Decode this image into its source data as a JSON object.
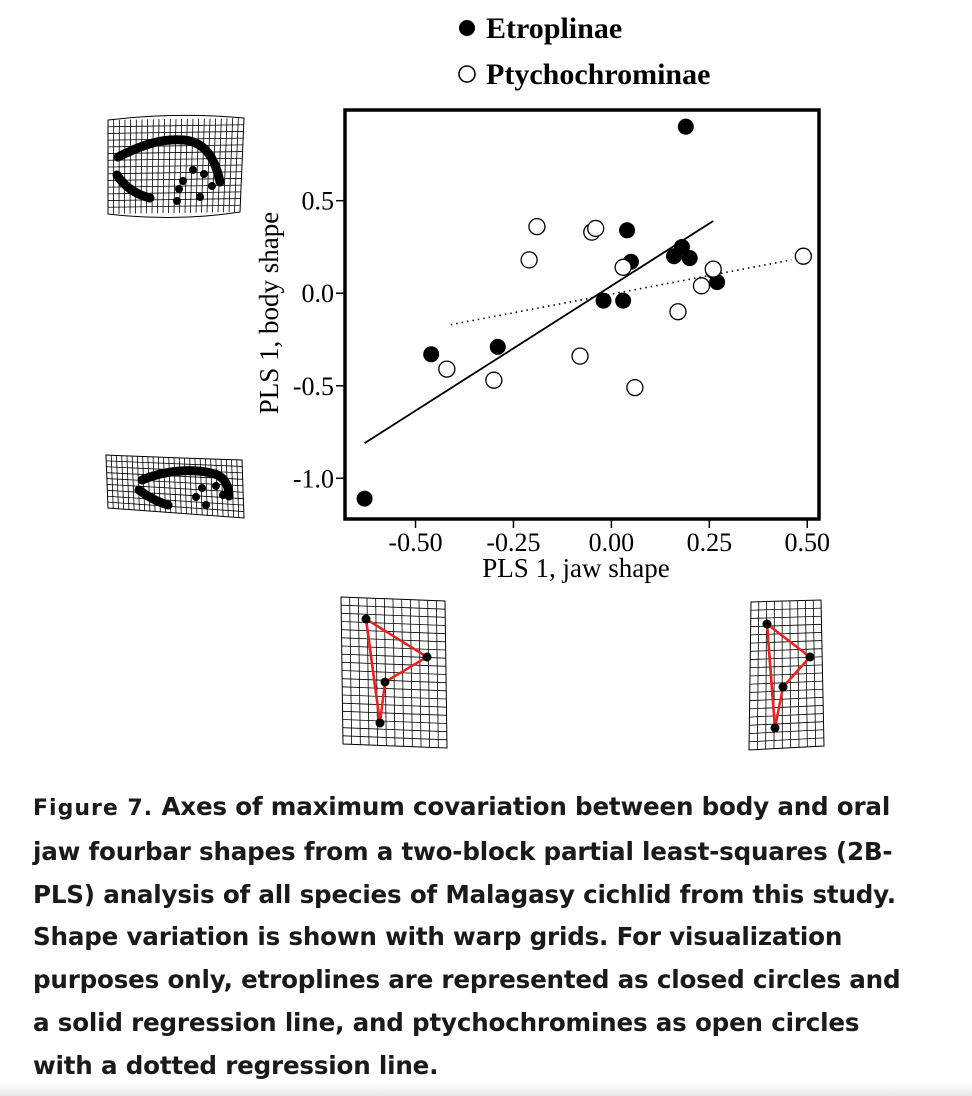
{
  "chart_data": {
    "type": "scatter",
    "title": "",
    "xlabel": "PLS 1, jaw shape",
    "ylabel": "PLS 1, body shape",
    "xlim": [
      -0.68,
      0.53
    ],
    "ylim": [
      -1.22,
      0.99
    ],
    "xticks": [
      -0.5,
      -0.25,
      0.0,
      0.25,
      0.5
    ],
    "xtick_labels": [
      "-0.50",
      "-0.25",
      "0.00",
      "0.25",
      "0.50"
    ],
    "yticks": [
      -1.0,
      -0.5,
      0.0,
      0.5
    ],
    "ytick_labels": [
      "-1.0",
      "-0.5",
      "0.0",
      "0.5"
    ],
    "grid": false,
    "legend_position": "top",
    "series": [
      {
        "name": "Etroplinae",
        "marker": "filled-circle",
        "regression": "solid",
        "regression_line": [
          [
            -0.63,
            -0.81
          ],
          [
            0.26,
            0.39
          ]
        ],
        "points": [
          [
            -0.63,
            -1.11
          ],
          [
            -0.46,
            -0.33
          ],
          [
            -0.29,
            -0.29
          ],
          [
            -0.02,
            -0.04
          ],
          [
            0.03,
            -0.04
          ],
          [
            0.04,
            0.34
          ],
          [
            0.05,
            0.17
          ],
          [
            0.16,
            0.2
          ],
          [
            0.18,
            0.25
          ],
          [
            0.2,
            0.19
          ],
          [
            0.26,
            0.12
          ],
          [
            0.27,
            0.06
          ],
          [
            0.19,
            0.9
          ]
        ]
      },
      {
        "name": "Ptychochrominae",
        "marker": "open-circle",
        "regression": "dotted",
        "regression_line": [
          [
            -0.41,
            -0.17
          ],
          [
            0.46,
            0.18
          ]
        ],
        "points": [
          [
            -0.42,
            -0.41
          ],
          [
            -0.3,
            -0.47
          ],
          [
            -0.21,
            0.18
          ],
          [
            -0.19,
            0.36
          ],
          [
            -0.08,
            -0.34
          ],
          [
            -0.05,
            0.33
          ],
          [
            -0.04,
            0.35
          ],
          [
            0.03,
            0.14
          ],
          [
            0.06,
            -0.51
          ],
          [
            0.17,
            -0.1
          ],
          [
            0.23,
            0.04
          ],
          [
            0.26,
            0.13
          ],
          [
            0.49,
            0.2
          ]
        ]
      }
    ]
  },
  "caption": {
    "label": "Figure 7.",
    "text": "Axes of maximum covariation between body and oral jaw fourbar shapes from a two-block partial least-squares (2B-PLS) analysis of all species of Malagasy cichlid from this study. Shape variation is shown with warp grids. For visualization purposes only, etroplines are represented as closed circles and a solid re­gression line, and ptychochromines as open circles with a dotted regression line."
  },
  "colors": {
    "ink": "#000000",
    "fourbar": "#e8231f",
    "caption_text": "#1a1a1a"
  }
}
